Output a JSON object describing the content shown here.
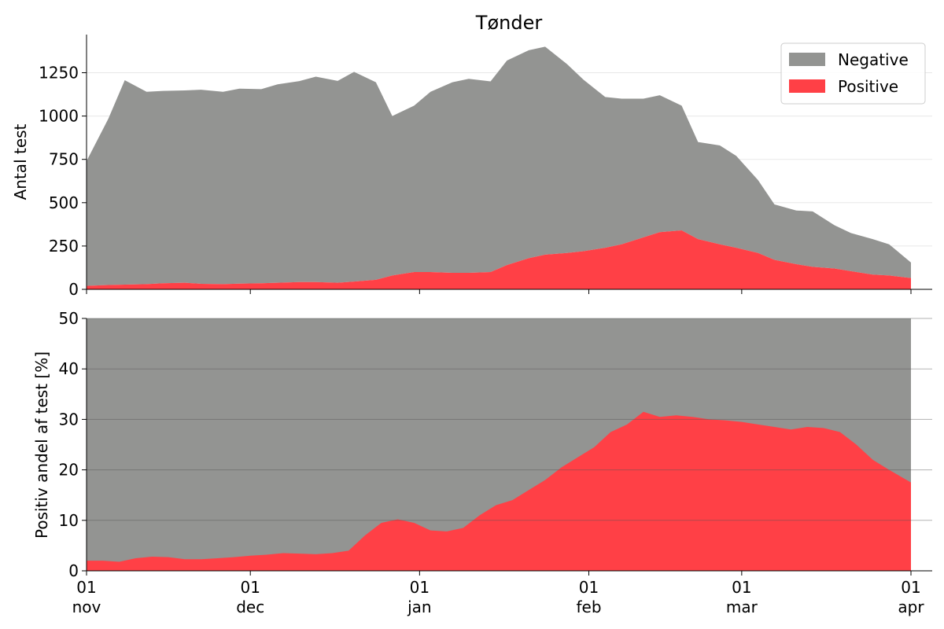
{
  "chart_data": [
    {
      "type": "area",
      "stacked": true,
      "title": "Tønder",
      "ylabel": "Antal test",
      "xlabel": "",
      "xlim": [
        "2020-11-01",
        "2021-04-01"
      ],
      "ylim": [
        0,
        1470
      ],
      "yticks": [
        0,
        250,
        500,
        750,
        1000,
        1250
      ],
      "grid": "horizontal",
      "legend": "top-right",
      "x": [
        "2020-11-01",
        "2020-11-05",
        "2020-11-08",
        "2020-11-12",
        "2020-11-15",
        "2020-11-19",
        "2020-11-22",
        "2020-11-26",
        "2020-11-29",
        "2020-12-03",
        "2020-12-06",
        "2020-12-10",
        "2020-12-13",
        "2020-12-17",
        "2020-12-20",
        "2020-12-24",
        "2020-12-27",
        "2020-12-31",
        "2021-01-03",
        "2021-01-07",
        "2021-01-10",
        "2021-01-14",
        "2021-01-17",
        "2021-01-21",
        "2021-01-24",
        "2021-01-28",
        "2021-01-31",
        "2021-02-04",
        "2021-02-07",
        "2021-02-11",
        "2021-02-14",
        "2021-02-18",
        "2021-02-21",
        "2021-02-25",
        "2021-02-28",
        "2021-03-04",
        "2021-03-07",
        "2021-03-11",
        "2021-03-14",
        "2021-03-18",
        "2021-03-21",
        "2021-03-25",
        "2021-03-28",
        "2021-04-01"
      ],
      "series": [
        {
          "name": "Positive",
          "color": "#ff4046",
          "values": [
            20,
            25,
            27,
            30,
            35,
            38,
            32,
            30,
            33,
            35,
            38,
            42,
            42,
            38,
            45,
            55,
            80,
            100,
            100,
            95,
            95,
            100,
            140,
            180,
            200,
            210,
            220,
            240,
            260,
            300,
            330,
            340,
            290,
            260,
            240,
            210,
            170,
            145,
            130,
            120,
            105,
            85,
            80,
            65
          ]
        },
        {
          "name": "Negative",
          "color": "#939492",
          "values": [
            720,
            960,
            1180,
            1110,
            1110,
            1110,
            1120,
            1110,
            1125,
            1120,
            1145,
            1160,
            1185,
            1165,
            1210,
            1140,
            920,
            960,
            1040,
            1100,
            1120,
            1100,
            1180,
            1200,
            1200,
            1090,
            990,
            870,
            840,
            800,
            790,
            720,
            560,
            570,
            530,
            420,
            320,
            310,
            320,
            250,
            220,
            205,
            180,
            90
          ]
        }
      ]
    },
    {
      "type": "area",
      "ylabel": "Positiv andel af test [%]",
      "xlabel": "",
      "xlim": [
        "2020-11-01",
        "2021-04-01"
      ],
      "ylim": [
        0,
        50
      ],
      "yticks": [
        0,
        10,
        20,
        30,
        40,
        50
      ],
      "grid": "horizontal",
      "background_series": {
        "name": "Negative",
        "color": "#939492"
      },
      "x": [
        "2020-11-01",
        "2020-11-04",
        "2020-11-07",
        "2020-11-10",
        "2020-11-13",
        "2020-11-16",
        "2020-11-19",
        "2020-11-22",
        "2020-11-25",
        "2020-11-28",
        "2020-12-01",
        "2020-12-04",
        "2020-12-07",
        "2020-12-10",
        "2020-12-13",
        "2020-12-16",
        "2020-12-19",
        "2020-12-22",
        "2020-12-25",
        "2020-12-28",
        "2020-12-31",
        "2021-01-03",
        "2021-01-06",
        "2021-01-09",
        "2021-01-12",
        "2021-01-15",
        "2021-01-18",
        "2021-01-21",
        "2021-01-24",
        "2021-01-27",
        "2021-01-30",
        "2021-02-02",
        "2021-02-05",
        "2021-02-08",
        "2021-02-11",
        "2021-02-14",
        "2021-02-17",
        "2021-02-20",
        "2021-02-23",
        "2021-02-26",
        "2021-03-01",
        "2021-03-04",
        "2021-03-07",
        "2021-03-10",
        "2021-03-13",
        "2021-03-16",
        "2021-03-19",
        "2021-03-22",
        "2021-03-25",
        "2021-03-28",
        "2021-04-01"
      ],
      "series": [
        {
          "name": "Positive",
          "color": "#ff4046",
          "values": [
            2,
            2,
            1.8,
            2.5,
            2.8,
            2.7,
            2.3,
            2.3,
            2.5,
            2.7,
            3,
            3.2,
            3.5,
            3.4,
            3.3,
            3.5,
            4,
            7,
            9.5,
            10.2,
            9.5,
            8,
            7.8,
            8.5,
            11,
            13,
            14,
            16,
            18,
            20.5,
            22.5,
            24.5,
            27.5,
            29,
            31.5,
            30.5,
            30.8,
            30.5,
            30,
            29.8,
            29.5,
            29,
            28.5,
            28,
            28.5,
            28.3,
            27.5,
            25,
            22,
            20,
            17.5
          ]
        }
      ]
    }
  ],
  "x_tick_labels": [
    {
      "date": "2020-11-01",
      "day": "01",
      "month": "nov"
    },
    {
      "date": "2020-12-01",
      "day": "01",
      "month": "dec"
    },
    {
      "date": "2021-01-01",
      "day": "01",
      "month": "jan"
    },
    {
      "date": "2021-02-01",
      "day": "01",
      "month": "feb"
    },
    {
      "date": "2021-03-01",
      "day": "01",
      "month": "mar"
    },
    {
      "date": "2021-04-01",
      "day": "01",
      "month": "apr"
    }
  ],
  "legend": {
    "items": [
      {
        "label": "Negative",
        "color": "#939492"
      },
      {
        "label": "Positive",
        "color": "#ff4046"
      }
    ]
  }
}
